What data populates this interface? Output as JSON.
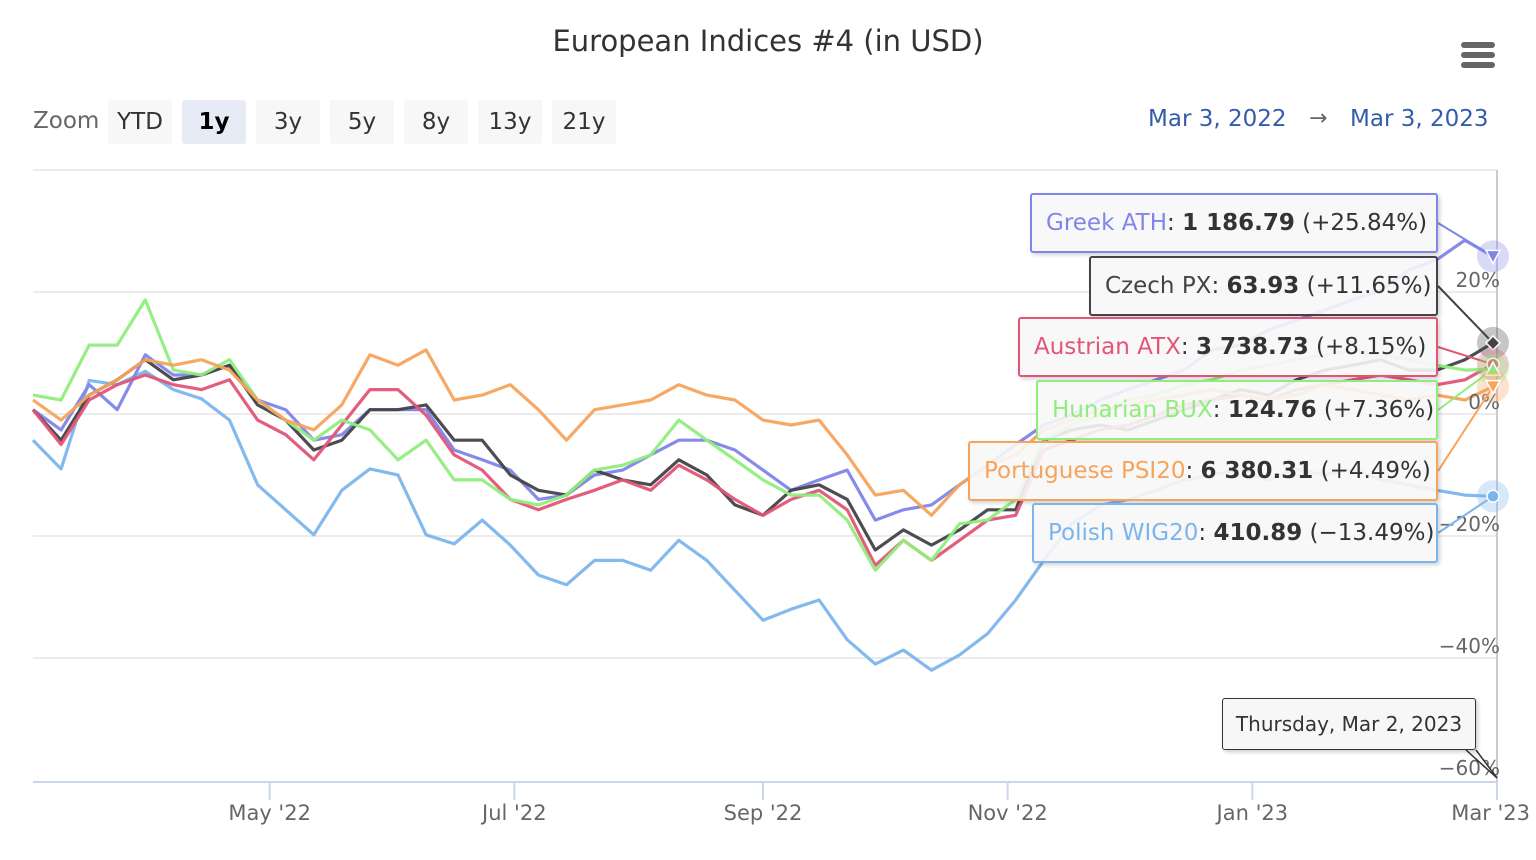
{
  "header": {
    "title": "European Indices #4 (in USD)",
    "menu_icon": "hamburger-menu-icon"
  },
  "range_selector": {
    "zoom_label": "Zoom",
    "buttons": [
      "YTD",
      "1y",
      "3y",
      "5y",
      "8y",
      "13y",
      "21y"
    ],
    "selected": "1y",
    "from": "Mar 3, 2022",
    "arrow": "→",
    "to": "Mar 3, 2023"
  },
  "chart_data": {
    "type": "line",
    "title": "European Indices #4 (in USD)",
    "x_start": "2022-03-03",
    "x_step_days": 7,
    "x_ticks": [
      "May '22",
      "Jul '22",
      "Sep '22",
      "Nov '22",
      "Jan '23",
      "Mar '23"
    ],
    "y_ticks": [
      "−60%",
      "−40%",
      "−20%",
      "0%",
      "20%"
    ],
    "y_tick_values": [
      -60,
      -40,
      -20,
      0,
      20
    ],
    "ylim": [
      -60,
      40
    ],
    "ylabel": "",
    "grid": true,
    "series": [
      {
        "name": "Polish WIG20",
        "color": "#7cb5ec",
        "marker": "circle",
        "last_value": "410.89",
        "last_change": "(−13.49%)",
        "values": [
          -4.3,
          -9,
          5.5,
          4.8,
          7,
          4,
          2.5,
          -1,
          -11.6,
          -15.7,
          -19.8,
          -12.5,
          -9,
          -10,
          -19.8,
          -21.3,
          -17.4,
          -21.5,
          -26.4,
          -28,
          -24,
          -24,
          -25.6,
          -20.7,
          -24,
          -28.9,
          -33.8,
          -32,
          -30.5,
          -37,
          -41,
          -38.7,
          -42,
          -39.5,
          -36,
          -30.5,
          -24,
          -18,
          -15,
          -14,
          -12.5,
          -10.8,
          -10,
          -9,
          -10.8,
          -9,
          -10,
          -9,
          -10.8,
          -11.6,
          -12.5,
          -13.3,
          -13.49
        ]
      },
      {
        "name": "Greek ATH",
        "color": "#8085e9",
        "marker": "triangle-down",
        "last_value": "1 186.79",
        "last_change": "(+25.84%)",
        "values": [
          0.7,
          -2.6,
          4.8,
          0.7,
          9.7,
          6.4,
          6.4,
          8,
          2.3,
          0.7,
          -4.3,
          -3.4,
          0.7,
          0.7,
          0.7,
          -5.9,
          -7.5,
          -9.2,
          -14,
          -13.3,
          -10,
          -9.2,
          -6.7,
          -4.3,
          -4.3,
          -5.9,
          -9.2,
          -12.5,
          -10.8,
          -9.2,
          -17.4,
          -15.7,
          -14.9,
          -11.6,
          -8.4,
          -5,
          -1.8,
          -0.2,
          2.3,
          4,
          5.6,
          7.2,
          10.5,
          11.3,
          13.8,
          15.4,
          17,
          18.7,
          20.3,
          23.6,
          25.3,
          28.5,
          25.84
        ]
      },
      {
        "name": "Czech PX",
        "color": "#434348",
        "marker": "diamond",
        "last_value": "63.93",
        "last_change": "(+11.65%)",
        "values": [
          0.7,
          -4.3,
          3.1,
          5.6,
          8.9,
          5.6,
          6.4,
          8,
          1.5,
          -1,
          -5.9,
          -4.3,
          0.7,
          0.7,
          1.5,
          -4.3,
          -4.3,
          -10,
          -12.5,
          -13.3,
          -9.2,
          -10.8,
          -11.6,
          -7.5,
          -10,
          -14.9,
          -16.6,
          -12.5,
          -11.6,
          -14,
          -22.3,
          -19,
          -21.5,
          -19,
          -15.7,
          -15.7,
          -4.3,
          -2.6,
          -1.8,
          -2.6,
          -1,
          0.7,
          2.3,
          4,
          3.1,
          5.6,
          7.2,
          8,
          8.9,
          7.2,
          7.2,
          8.9,
          11.65
        ]
      },
      {
        "name": "Austrian ATX",
        "color": "#e25577",
        "marker": "circle",
        "last_value": "3 738.73",
        "last_change": "(+8.15%)",
        "values": [
          0.7,
          -5,
          2.3,
          4.8,
          6.4,
          4.8,
          4,
          5.6,
          -1,
          -3.4,
          -7.5,
          -1.8,
          4,
          4,
          -0.2,
          -6.7,
          -9.2,
          -14,
          -15.7,
          -14,
          -12.5,
          -10.8,
          -12.5,
          -8.4,
          -10.8,
          -14,
          -16.6,
          -14,
          -12.5,
          -15.7,
          -24.8,
          -20.7,
          -24,
          -20.7,
          -17.4,
          -16.6,
          -5.9,
          -4.3,
          -2.6,
          -1.8,
          -0.2,
          1.5,
          2.3,
          3.1,
          2.3,
          4,
          4.8,
          5.6,
          6.4,
          5.6,
          4.8,
          5.6,
          8.15
        ]
      },
      {
        "name": "Hunarian BUX",
        "color": "#90ed7d",
        "marker": "triangle",
        "last_value": "124.76",
        "last_change": "(+7.36%)",
        "values": [
          3.1,
          2.3,
          11.3,
          11.3,
          18.7,
          7.2,
          6.4,
          8.9,
          2.3,
          -1,
          -4.3,
          -1,
          -2.6,
          -7.5,
          -4.3,
          -10.8,
          -10.8,
          -14,
          -14.9,
          -13.3,
          -9.2,
          -8.4,
          -6.7,
          -1,
          -4.3,
          -7.5,
          -10.8,
          -13.3,
          -13.3,
          -17.4,
          -25.6,
          -20.7,
          -24,
          -18,
          -17.4,
          -14,
          -4.3,
          -1.8,
          -0.2,
          2.3,
          3.1,
          4.8,
          5.6,
          7.2,
          8,
          8.9,
          9.7,
          10.5,
          9.7,
          8.9,
          8,
          7.2,
          7.36
        ]
      },
      {
        "name": "Portuguese PSI20",
        "color": "#f7a35c",
        "marker": "triangle-down",
        "last_value": "6 380.31",
        "last_change": "(+4.49%)",
        "values": [
          2.3,
          -1,
          3.1,
          5.6,
          8.9,
          8,
          8.9,
          7.2,
          2.3,
          -1,
          -2.6,
          1.5,
          9.7,
          8,
          10.5,
          2.3,
          3.1,
          4.8,
          0.7,
          -4.3,
          0.7,
          1.5,
          2.3,
          4.8,
          3.1,
          2.3,
          -1,
          -1.8,
          -1,
          -6.7,
          -13.3,
          -12.5,
          -16.6,
          -11.6,
          -8.4,
          -6.7,
          -2.6,
          -1,
          0.7,
          1.5,
          2.3,
          3.1,
          4,
          3.1,
          2.3,
          3.1,
          4.8,
          4,
          3.1,
          2.3,
          3.1,
          2.3,
          4.49
        ]
      }
    ],
    "tooltip": {
      "date": "Thursday, Mar 2, 2023",
      "order": [
        "Greek ATH",
        "Czech PX",
        "Austrian ATX",
        "Hunarian BUX",
        "Portuguese PSI20",
        "Polish WIG20"
      ]
    }
  }
}
